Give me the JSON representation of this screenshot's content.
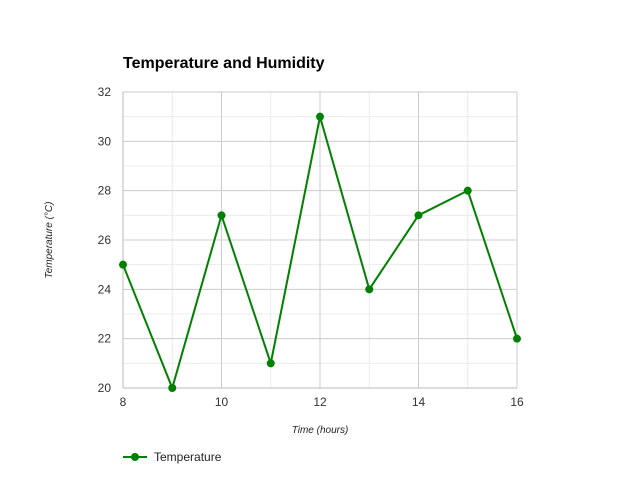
{
  "chart_data": {
    "type": "line",
    "title": "Temperature and Humidity",
    "xlabel": "Time (hours)",
    "ylabel": "Temperature (°C)",
    "xlim": [
      8,
      16
    ],
    "ylim": [
      20,
      32
    ],
    "x_ticks": [
      "8",
      "10",
      "12",
      "14",
      "16"
    ],
    "y_ticks": [
      "20",
      "22",
      "24",
      "26",
      "28",
      "30",
      "32"
    ],
    "grid": true,
    "legend_position": "bottom-left",
    "series": [
      {
        "name": "Temperature",
        "color": "#008000",
        "x": [
          8,
          9,
          10,
          11,
          12,
          13,
          14,
          15,
          16
        ],
        "y": [
          25,
          20,
          27,
          21,
          31,
          24,
          27,
          28,
          22
        ]
      }
    ]
  }
}
